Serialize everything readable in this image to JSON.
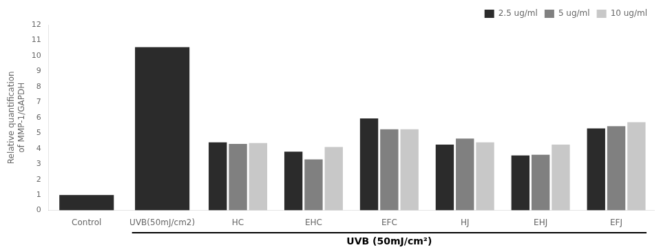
{
  "chart_data": {
    "type": "bar",
    "categories": [
      "Control",
      "UVB(50mJ/cm2)",
      "HC",
      "EHC",
      "EFC",
      "HJ",
      "EHJ",
      "EFJ"
    ],
    "series": [
      {
        "name": "2.5 ug/ml",
        "color": "#2b2b2b",
        "values": [
          1.0,
          10.55,
          4.4,
          3.8,
          5.95,
          4.25,
          3.55,
          5.3
        ]
      },
      {
        "name": "5 ug/ml",
        "color": "#808080",
        "values": [
          null,
          null,
          4.3,
          3.3,
          5.25,
          4.65,
          3.6,
          5.45
        ]
      },
      {
        "name": "10 ug/ml",
        "color": "#c8c8c8",
        "values": [
          null,
          null,
          4.35,
          4.1,
          5.25,
          4.4,
          4.25,
          5.7
        ]
      }
    ],
    "ylabel": "Relative quantification\nof MMP-1/GAPDH",
    "xlabel": "UVB (50mJ/cm²)",
    "ylim": [
      0,
      12
    ],
    "yticks": [
      0,
      1,
      2,
      3,
      4,
      5,
      6,
      7,
      8,
      9,
      10,
      11,
      12
    ],
    "grid": false,
    "legend": "upper right"
  }
}
